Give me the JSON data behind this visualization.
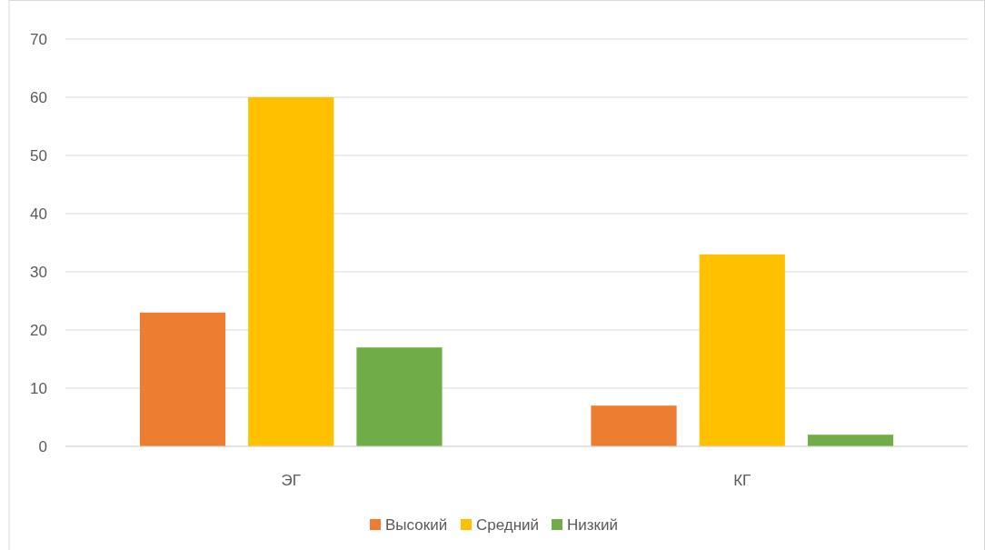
{
  "chart_data": {
    "type": "bar",
    "categories": [
      "ЭГ",
      "КГ"
    ],
    "series": [
      {
        "name": "Высокий",
        "color": "#ed7d31",
        "values": [
          23,
          7
        ]
      },
      {
        "name": "Средний",
        "color": "#ffc000",
        "values": [
          60,
          33
        ]
      },
      {
        "name": "Низкий",
        "color": "#70ad47",
        "values": [
          17,
          2
        ]
      }
    ],
    "ylim": [
      0,
      70
    ],
    "yticks": [
      0,
      10,
      20,
      30,
      40,
      50,
      60,
      70
    ],
    "grid": "y",
    "legend": "bottom"
  }
}
